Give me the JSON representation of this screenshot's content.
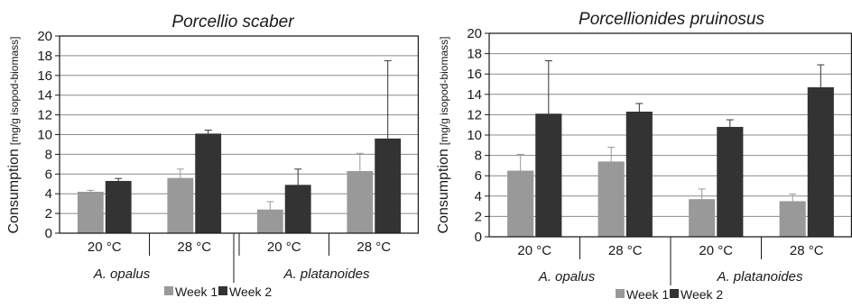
{
  "legend_labels": [
    "Week 1",
    "Week 2"
  ],
  "colors": {
    "week1": "#999999",
    "week2": "#333333",
    "axis": "#1a1a1a",
    "gridline": "#8c8c8c"
  },
  "chart_data": [
    {
      "type": "bar",
      "title": "Porcellio scaber",
      "ylabel": "Consumption",
      "ylabel_unit": "[mg/g isopod-biomass]",
      "ylim": [
        0,
        20
      ],
      "yticks": [
        0,
        2,
        4,
        6,
        8,
        10,
        12,
        14,
        16,
        18,
        20
      ],
      "grid": true,
      "legend": "bottom",
      "categories": [
        "20 °C",
        "28 °C",
        "20 °C",
        "28 °C"
      ],
      "groups": [
        {
          "label": "A. opalus",
          "categories": [
            "20 °C",
            "28 °C"
          ]
        },
        {
          "label": "A. platanoides",
          "categories": [
            "20 °C",
            "28 °C"
          ]
        }
      ],
      "series": [
        {
          "name": "Week 1",
          "values": [
            4.2,
            5.6,
            2.4,
            6.3
          ],
          "errors": [
            0.15,
            0.9,
            0.8,
            1.8
          ]
        },
        {
          "name": "Week 2",
          "values": [
            5.3,
            10.1,
            4.9,
            9.6
          ],
          "errors": [
            0.25,
            0.35,
            1.6,
            7.9
          ]
        }
      ]
    },
    {
      "type": "bar",
      "title": "Porcellionides pruinosus",
      "ylabel": "Consumption",
      "ylabel_unit": "[mg/g isopod-biomass]",
      "ylim": [
        0,
        20
      ],
      "yticks": [
        0,
        2,
        4,
        6,
        8,
        10,
        12,
        14,
        16,
        18,
        20
      ],
      "grid": true,
      "legend": "bottom",
      "categories": [
        "20 °C",
        "28 °C",
        "20 °C",
        "28 °C"
      ],
      "groups": [
        {
          "label": "A. opalus",
          "categories": [
            "20 °C",
            "28 °C"
          ]
        },
        {
          "label": "A. platanoides",
          "categories": [
            "20 °C",
            "28 °C"
          ]
        }
      ],
      "series": [
        {
          "name": "Week 1",
          "values": [
            6.5,
            7.4,
            3.7,
            3.5
          ],
          "errors": [
            1.6,
            1.4,
            1.0,
            0.7
          ]
        },
        {
          "name": "Week 2",
          "values": [
            12.1,
            12.3,
            10.8,
            14.7
          ],
          "errors": [
            5.2,
            0.8,
            0.7,
            2.2
          ]
        }
      ]
    }
  ]
}
